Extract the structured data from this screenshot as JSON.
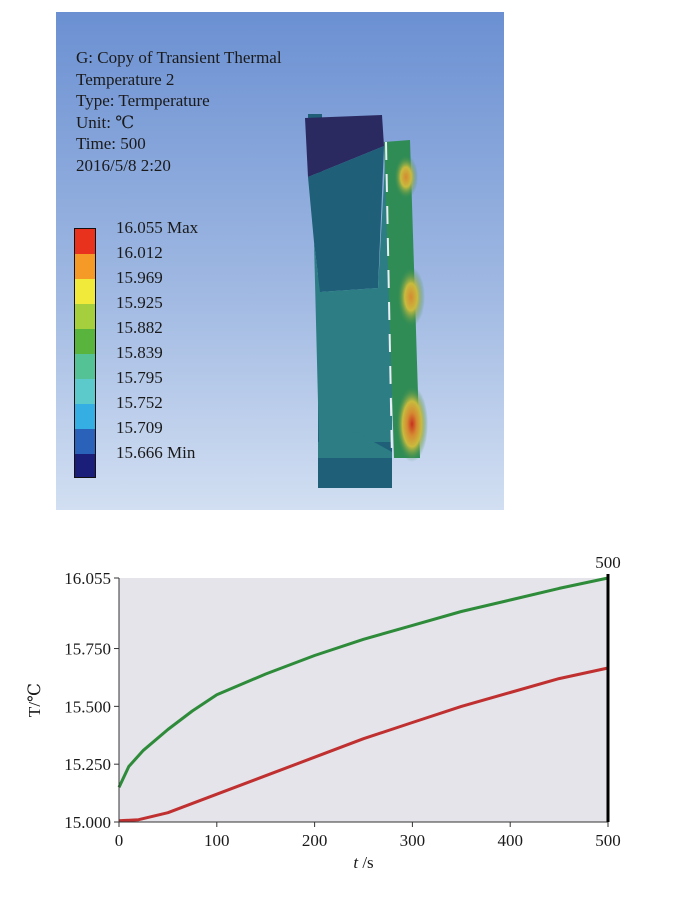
{
  "viewport": {
    "info_lines": [
      "G: Copy of Transient Thermal",
      "Temperature 2",
      "Type: Termperature",
      "Unit: ℃",
      "Time: 500",
      "2016/5/8  2:20"
    ],
    "legend": {
      "labels": [
        "16.055 Max",
        "16.012",
        "15.969",
        "15.925",
        "15.882",
        "15.839",
        "15.795",
        "15.752",
        "15.709",
        "15.666 Min"
      ],
      "colors": [
        "#e8321e",
        "#f59a27",
        "#f1ea3a",
        "#a6cf3d",
        "#58b43c",
        "#55c295",
        "#5ccacb",
        "#35afe3",
        "#2b62b9",
        "#1b1e78"
      ]
    },
    "model_colors": {
      "darkest": "#2a2a60",
      "dark_teal": "#1f5f78",
      "teal": "#2d7d85",
      "green": "#2f8c55",
      "yellow": "#c9bb3e",
      "orange": "#d58a32",
      "red": "#c8301f",
      "white_line": "#e8eef6"
    }
  },
  "chart_data": {
    "type": "line",
    "title": "",
    "xlabel_var": "t",
    "xlabel_unit": " /s",
    "ylabel": "T/℃",
    "xlim": [
      0,
      500
    ],
    "ylim": [
      15.0,
      16.055
    ],
    "x_ticks": [
      "0",
      "100",
      "200",
      "300",
      "400",
      "500"
    ],
    "x_tick_values": [
      0,
      100,
      200,
      300,
      400,
      500
    ],
    "y_ticks": [
      "15.000",
      "15.250",
      "15.500",
      "15.750",
      "16.055"
    ],
    "y_tick_values": [
      15.0,
      15.25,
      15.5,
      15.75,
      16.055
    ],
    "marker_label": "500",
    "marker_x": 500,
    "grid": false,
    "background_color": "#e4e4ea",
    "series": [
      {
        "color": "#2e8b3a",
        "x": [
          0,
          10,
          25,
          50,
          75,
          100,
          150,
          200,
          250,
          300,
          350,
          400,
          450,
          500
        ],
        "y": [
          15.15,
          15.24,
          15.31,
          15.4,
          15.48,
          15.55,
          15.64,
          15.72,
          15.79,
          15.85,
          15.91,
          15.96,
          16.01,
          16.055
        ]
      },
      {
        "color": "#c03030",
        "x": [
          0,
          20,
          50,
          100,
          150,
          200,
          250,
          300,
          350,
          400,
          450,
          500
        ],
        "y": [
          15.005,
          15.01,
          15.04,
          15.12,
          15.2,
          15.28,
          15.36,
          15.43,
          15.5,
          15.56,
          15.62,
          15.666
        ]
      }
    ]
  }
}
